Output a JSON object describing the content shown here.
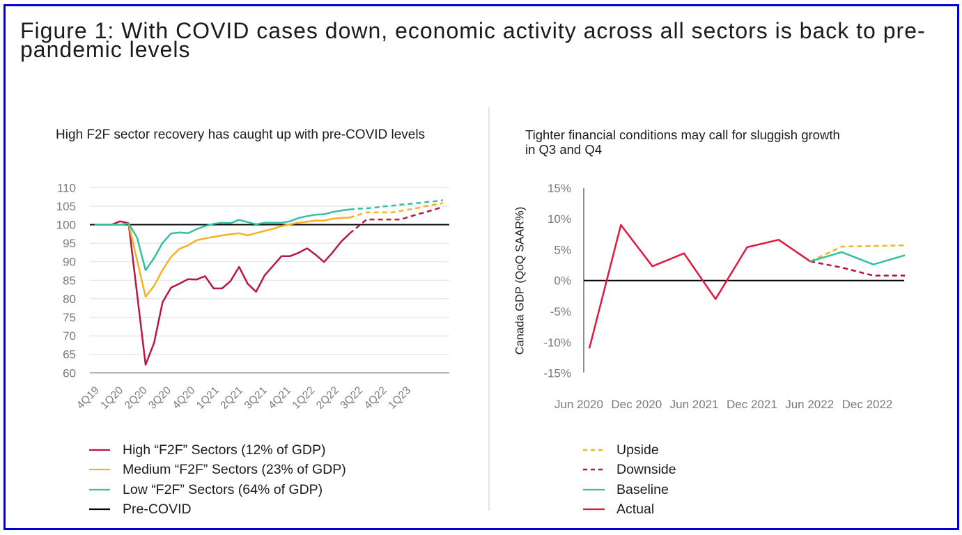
{
  "figure": {
    "title_lines": [
      "Figure 1: With COVID cases down, economic activity across all sectors is back to pre-",
      "pandemic levels"
    ]
  },
  "chart_data": [
    {
      "type": "line",
      "title": "High F2F sector recovery has caught up with pre-COVID levels",
      "xlabel": "",
      "ylabel": "",
      "ylim": [
        60,
        110
      ],
      "y_ticks": [
        60,
        65,
        70,
        75,
        80,
        85,
        90,
        95,
        100,
        105,
        110
      ],
      "grid": true,
      "x_tick_labels": [
        "4Q19",
        "1Q20",
        "2Q20",
        "3Q20",
        "4Q20",
        "1Q21",
        "2Q21",
        "3Q21",
        "4Q21",
        "1Q22",
        "2Q22",
        "3Q22",
        "4Q22",
        "1Q23"
      ],
      "x": [
        "Oct 2019",
        "Nov 2019",
        "Dec 2019",
        "Jan 2020",
        "Feb 2020",
        "Mar 2020",
        "Apr 2020",
        "May 2020",
        "Jun 2020",
        "Jul 2020",
        "Aug 2020",
        "Sep 2020",
        "Oct 2020",
        "Nov 2020",
        "Dec 2020",
        "Jan 2021",
        "Feb 2021",
        "Mar 2021",
        "Apr 2021",
        "May 2021",
        "Jun 2021",
        "Jul 2021",
        "Aug 2021",
        "Sep 2021",
        "Oct 2021",
        "Nov 2021",
        "Dec 2021",
        "Jan 2022",
        "Feb 2022",
        "Mar 2022",
        "Apr 2022",
        "May 2022",
        "Jun 2022",
        "Jul 2022",
        "Aug 2022",
        "Sep 2022",
        "Oct 2022",
        "Nov 2022",
        "Dec 2022",
        "Jan 2023",
        "Feb 2023",
        "Mar 2023"
      ],
      "forecast_from_index": 30,
      "series": [
        {
          "name": "High “F2F” Sectors (12% of GDP)",
          "color": "#b8173f",
          "values": [
            100.0,
            100.0,
            100.0,
            100.9,
            100.4,
            81.3,
            62.2,
            68.1,
            79.1,
            83.0,
            84.1,
            85.3,
            85.2,
            86.1,
            82.8,
            82.8,
            84.8,
            88.6,
            84.1,
            81.9,
            86.3,
            88.9,
            91.5,
            91.5,
            92.4,
            93.6,
            91.9,
            89.9,
            92.5,
            95.4,
            97.6,
            99.5,
            101.4,
            101.4,
            101.4,
            101.4,
            101.4,
            102.1,
            102.8,
            103.4,
            104.1,
            104.8
          ]
        },
        {
          "name": "Medium “F2F” Sectors (23% of GDP)",
          "color": "#f4b223",
          "values": [
            100.0,
            100.0,
            100.0,
            100.0,
            100.3,
            90.4,
            80.5,
            83.5,
            87.8,
            91.3,
            93.5,
            94.4,
            95.8,
            96.3,
            96.7,
            97.1,
            97.4,
            97.7,
            97.1,
            97.7,
            98.3,
            98.9,
            99.6,
            100.1,
            100.5,
            100.8,
            101.1,
            101.1,
            101.6,
            101.8,
            101.9,
            102.6,
            103.3,
            103.3,
            103.3,
            103.3,
            103.7,
            104.1,
            104.5,
            105.0,
            105.4,
            105.8
          ]
        },
        {
          "name": "Low “F2F” Sectors (64% of GDP)",
          "color": "#33bfa3",
          "values": [
            100.0,
            100.0,
            100.0,
            100.0,
            100.3,
            96.5,
            87.7,
            91.0,
            95.1,
            97.6,
            97.9,
            97.7,
            98.8,
            99.6,
            100.2,
            100.5,
            100.4,
            101.3,
            100.7,
            100.1,
            100.5,
            100.5,
            100.5,
            100.9,
            101.8,
            102.3,
            102.7,
            102.8,
            103.4,
            103.8,
            104.1,
            104.3,
            104.4,
            104.6,
            104.9,
            105.1,
            105.4,
            105.6,
            105.8,
            106.1,
            106.3,
            106.6
          ]
        }
      ],
      "reference_line": {
        "name": "Pre-COVID",
        "value": 100,
        "color": "#000000"
      },
      "legend_position": "bottom-left",
      "legend": [
        {
          "label": "High “F2F” Sectors (12% of GDP)",
          "color": "#b8173f",
          "style": "solid"
        },
        {
          "label": "Medium “F2F” Sectors (23% of GDP)",
          "color": "#f4b223",
          "style": "solid"
        },
        {
          "label": "Low “F2F” Sectors (64% of GDP)",
          "color": "#33bfa3",
          "style": "solid"
        },
        {
          "label": "Pre-COVID",
          "color": "#000000",
          "style": "solid"
        }
      ]
    },
    {
      "type": "line",
      "title": "Tighter financial conditions may call for sluggish growth in Q3 and Q4",
      "xlabel": "",
      "ylabel": "Canada GDP (QoQ SAAR%)",
      "ylim": [
        -15,
        15
      ],
      "y_ticks": [
        -15,
        -10,
        -5,
        0,
        5,
        10,
        15
      ],
      "y_tick_labels": [
        "-15%",
        "-10%",
        "-5%",
        "0%",
        "5%",
        "10%",
        "15%"
      ],
      "grid": false,
      "x": [
        "Jun 2020",
        "Sep 2020",
        "Dec 2020",
        "Mar 2021",
        "Jun 2021",
        "Sep 2021",
        "Dec 2021",
        "Mar 2022",
        "Jun 2022",
        "Sep 2022",
        "Dec 2022"
      ],
      "x_tick_labels": [
        "Jun 2020",
        "Dec 2020",
        "Jun 2021",
        "Dec 2021",
        "Jun 2022",
        "Dec 2022"
      ],
      "series": [
        {
          "name": "Actual",
          "color": "#e3173e",
          "style": "solid",
          "values": [
            -11.0,
            9.0,
            2.3,
            4.4,
            -3.0,
            5.4,
            6.6,
            3.1,
            null,
            null,
            null
          ]
        },
        {
          "name": "Upside",
          "color": "#f4b223",
          "style": "dashed",
          "values": [
            null,
            null,
            null,
            null,
            null,
            null,
            null,
            3.1,
            5.5,
            5.6,
            5.7
          ]
        },
        {
          "name": "Downside",
          "color": "#b5123f",
          "style": "dashed",
          "values": [
            null,
            null,
            null,
            null,
            null,
            null,
            null,
            3.1,
            2.1,
            0.8,
            0.8
          ]
        },
        {
          "name": "Baseline",
          "color": "#33bfa3",
          "style": "solid",
          "values": [
            null,
            null,
            null,
            null,
            null,
            null,
            null,
            3.1,
            4.6,
            2.6,
            4.1
          ]
        }
      ],
      "reference_line": {
        "value": 0,
        "color": "#000000"
      },
      "legend_position": "bottom-left",
      "legend": [
        {
          "label": "Upside",
          "color": "#f4b223",
          "style": "dashed"
        },
        {
          "label": "Downside",
          "color": "#b5123f",
          "style": "dashed"
        },
        {
          "label": "Baseline",
          "color": "#33bfa3",
          "style": "solid"
        },
        {
          "label": "Actual",
          "color": "#e3173e",
          "style": "solid"
        }
      ]
    }
  ]
}
